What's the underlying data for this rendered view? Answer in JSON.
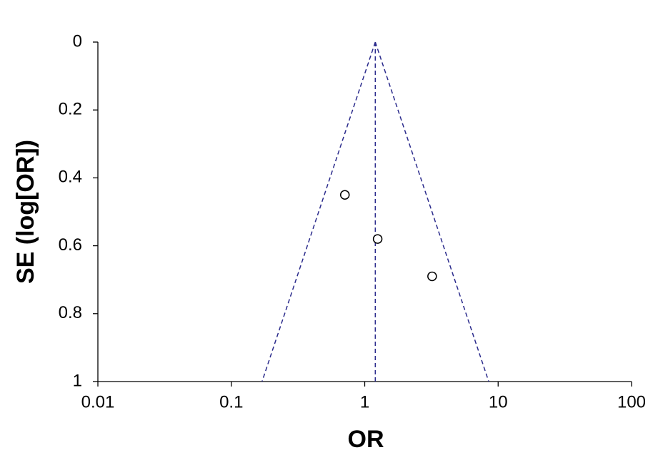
{
  "chart_data": {
    "type": "scatter",
    "xlabel": "OR",
    "ylabel": "SE (log[OR])",
    "xscale": "log",
    "yinverted": true,
    "xlim": [
      0.01,
      100
    ],
    "ylim": [
      0,
      1
    ],
    "xticks": [
      0.01,
      0.1,
      1,
      10,
      100
    ],
    "yticks": [
      0,
      0.2,
      0.4,
      0.6,
      0.8,
      1
    ],
    "grid": false,
    "points": {
      "x": [
        0.71,
        1.25,
        3.2
      ],
      "y": [
        0.45,
        0.58,
        0.69
      ],
      "color": "#000000"
    },
    "lines": [
      {
        "x": [
          1.2,
          0.17
        ],
        "y": [
          0,
          1
        ]
      },
      {
        "x": [
          1.2,
          8.5
        ],
        "y": [
          0,
          1
        ]
      },
      {
        "x": [
          1.2,
          1.2
        ],
        "y": [
          0,
          1
        ]
      }
    ],
    "line_color": "#2b2b8c"
  }
}
